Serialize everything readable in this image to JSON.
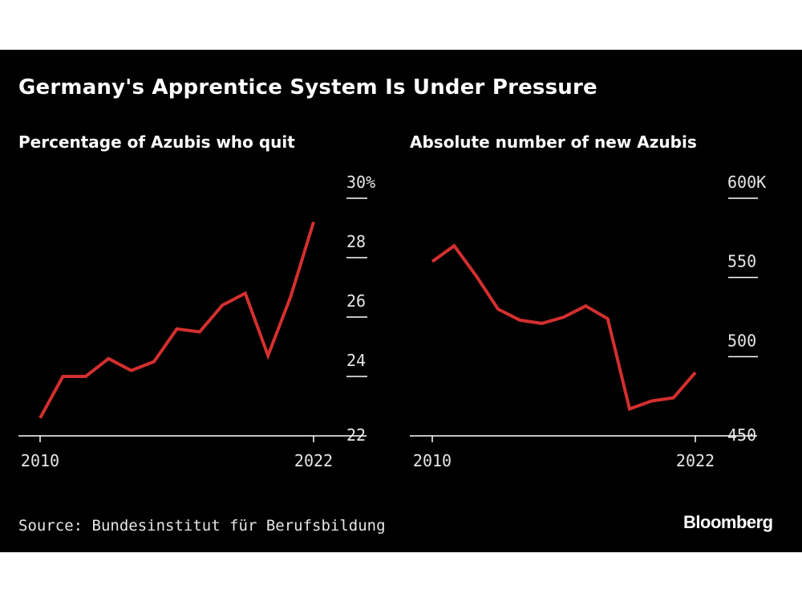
{
  "header": {
    "title": "Germany's Apprentice System Is Under Pressure"
  },
  "footer": {
    "source": "Source: Bundesinstitut für Berufsbildung",
    "brand": "Bloomberg"
  },
  "colors": {
    "line": "#d32f2f",
    "background": "#000000",
    "text": "#ffffff"
  },
  "chart_data": [
    {
      "type": "line",
      "title": "Percentage of Azubis who quit",
      "x": [
        2010,
        2011,
        2012,
        2013,
        2014,
        2015,
        2016,
        2017,
        2018,
        2019,
        2020,
        2021,
        2022
      ],
      "values": [
        22.6,
        24.0,
        24.0,
        24.6,
        24.2,
        24.5,
        25.6,
        25.5,
        26.4,
        26.8,
        24.7,
        26.7,
        29.2
      ],
      "ylim": [
        22,
        30
      ],
      "yticks": [
        22,
        24,
        26,
        28,
        30
      ],
      "ytick_labels": [
        "22",
        "24",
        "26",
        "28",
        "30%"
      ],
      "xtick_labels": [
        "2010",
        "2022"
      ],
      "xlabel": "",
      "ylabel": ""
    },
    {
      "type": "line",
      "title": "Absolute number of new Azubis",
      "x": [
        2010,
        2011,
        2012,
        2013,
        2014,
        2015,
        2016,
        2017,
        2018,
        2019,
        2020,
        2021,
        2022
      ],
      "values": [
        560,
        570,
        551,
        530,
        523,
        521,
        525,
        532,
        524,
        467,
        472,
        474,
        490
      ],
      "ylim": [
        450,
        600
      ],
      "yticks": [
        450,
        500,
        550,
        600
      ],
      "ytick_labels": [
        "450",
        "500",
        "550",
        "600K"
      ],
      "xtick_labels": [
        "2010",
        "2022"
      ],
      "xlabel": "",
      "ylabel": ""
    }
  ]
}
